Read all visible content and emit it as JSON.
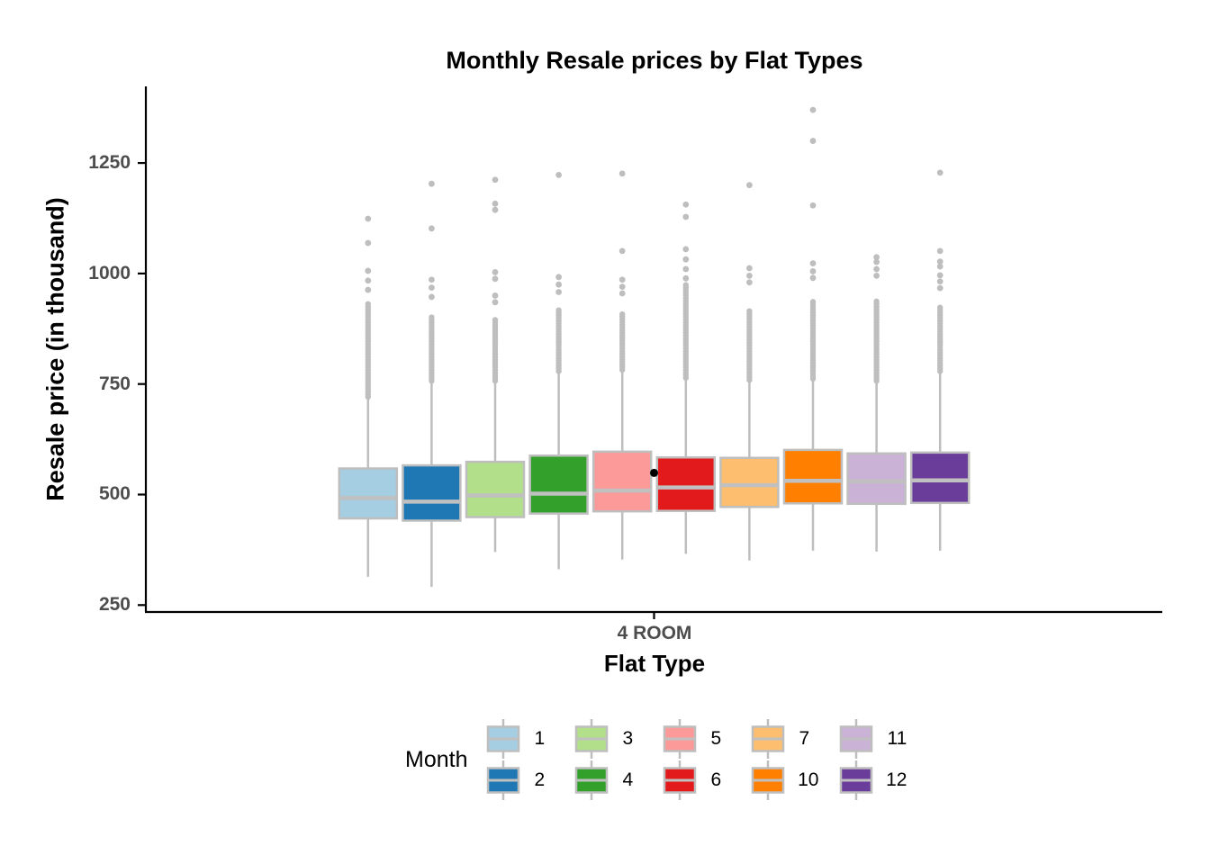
{
  "chart_data": {
    "type": "boxplot",
    "title": "Monthly Resale prices by Flat Types",
    "xlabel": "Flat Type",
    "ylabel": "Resale price (in thousand)",
    "category": "4 ROOM",
    "legend_title": "Month",
    "legend_position": "bottom",
    "grid": false,
    "y_ticks": [
      250,
      500,
      750,
      1000,
      1250
    ],
    "ylim": [
      250,
      1400
    ],
    "series": [
      {
        "month": "1",
        "color": "#A6CEE3",
        "whisker_low": 314,
        "q1": 446,
        "median": 492,
        "q3": 559,
        "whisker_high": 717,
        "outliers_dense": [
          721,
          933
        ],
        "outliers": [
          963,
          984,
          1006,
          1069,
          1124
        ]
      },
      {
        "month": "2",
        "color": "#1F78B4",
        "whisker_low": 291,
        "q1": 441,
        "median": 484,
        "q3": 566,
        "whisker_high": 753,
        "outliers_dense": [
          757,
          902
        ],
        "outliers": [
          947,
          968,
          986,
          1102,
          1203
        ]
      },
      {
        "month": "3",
        "color": "#B2DF8A",
        "whisker_low": 370,
        "q1": 449,
        "median": 498,
        "q3": 574,
        "whisker_high": 753,
        "outliers_dense": [
          757,
          896
        ],
        "outliers": [
          935,
          950,
          988,
          1003,
          1144,
          1158,
          1212
        ]
      },
      {
        "month": "4",
        "color": "#33A02C",
        "whisker_low": 331,
        "q1": 457,
        "median": 502,
        "q3": 588,
        "whisker_high": 775,
        "outliers_dense": [
          779,
          920
        ],
        "outliers": [
          958,
          975,
          992,
          1223
        ]
      },
      {
        "month": "5",
        "color": "#FB9A99",
        "whisker_low": 353,
        "q1": 462,
        "median": 509,
        "q3": 597,
        "whisker_high": 778,
        "outliers_dense": [
          782,
          909
        ],
        "outliers": [
          955,
          970,
          986,
          1051,
          1226
        ]
      },
      {
        "month": "6",
        "color": "#E31A1C",
        "whisker_low": 366,
        "q1": 463,
        "median": 516,
        "q3": 584,
        "whisker_high": 760,
        "outliers_dense": [
          764,
          978
        ],
        "outliers": [
          989,
          1010,
          1032,
          1055,
          1128,
          1156
        ]
      },
      {
        "month": "7",
        "color": "#FDBF6F",
        "whisker_low": 351,
        "q1": 472,
        "median": 521,
        "q3": 583,
        "whisker_high": 755,
        "outliers_dense": [
          759,
          919
        ],
        "outliers": [
          980,
          995,
          1012,
          1200
        ]
      },
      {
        "month": "10",
        "color": "#FF7F00",
        "whisker_low": 373,
        "q1": 480,
        "median": 531,
        "q3": 601,
        "whisker_high": 758,
        "outliers_dense": [
          762,
          937
        ],
        "outliers": [
          990,
          1005,
          1023,
          1154,
          1300,
          1370
        ]
      },
      {
        "month": "11",
        "color": "#CAB2D6",
        "whisker_low": 371,
        "q1": 479,
        "median": 530,
        "q3": 593,
        "whisker_high": 753,
        "outliers_dense": [
          757,
          937
        ],
        "outliers": [
          995,
          1010,
          1026,
          1037
        ]
      },
      {
        "month": "12",
        "color": "#6A3D9A",
        "whisker_low": 373,
        "q1": 481,
        "median": 532,
        "q3": 595,
        "whisker_high": 775,
        "outliers_dense": [
          779,
          927
        ],
        "outliers": [
          967,
          982,
          996,
          1016,
          1027,
          1051,
          1228
        ]
      }
    ],
    "mean_point": {
      "category": "4 ROOM",
      "value": 549
    },
    "style": {
      "box_stroke": "#BEBEBE",
      "median_line": "#C0C0C0",
      "whisker": "#BEBEBE",
      "outlier": "#BEBEBE",
      "axis_line": "#000000",
      "axis_text": "#4D4D4D",
      "mean_point": "#000000",
      "background": "#FFFFFF"
    }
  }
}
